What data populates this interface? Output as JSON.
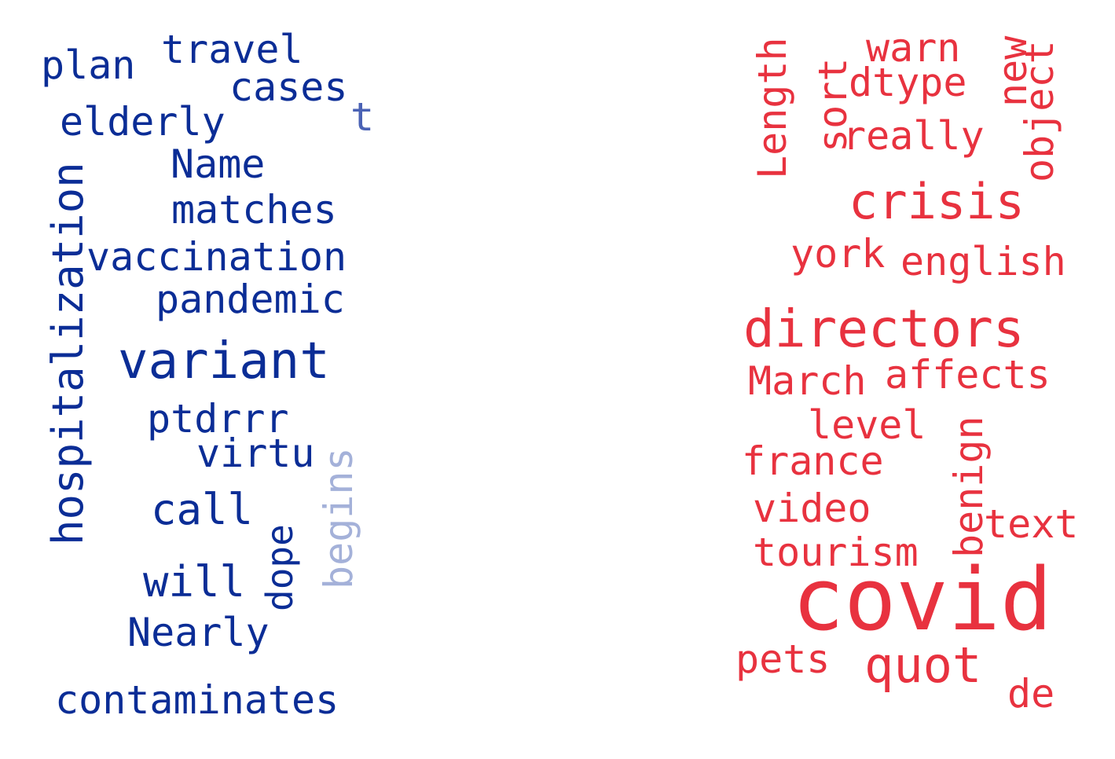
{
  "colors": {
    "left_primary": "#0b2d96",
    "left_medium": "#4a62b5",
    "left_light": "#a4b1d9",
    "right_primary": "#e8323f"
  },
  "left_cloud": {
    "words": [
      {
        "text": "plan",
        "tone": "primary"
      },
      {
        "text": "travel",
        "tone": "primary"
      },
      {
        "text": "cases",
        "tone": "primary"
      },
      {
        "text": "t",
        "tone": "medium"
      },
      {
        "text": "elderly",
        "tone": "primary"
      },
      {
        "text": "Name",
        "tone": "primary"
      },
      {
        "text": "matches",
        "tone": "primary"
      },
      {
        "text": "hospitalization",
        "tone": "primary"
      },
      {
        "text": "vaccination",
        "tone": "primary"
      },
      {
        "text": "pandemic",
        "tone": "primary"
      },
      {
        "text": "variant",
        "tone": "primary"
      },
      {
        "text": "ptdrrr",
        "tone": "primary"
      },
      {
        "text": "virtu",
        "tone": "primary"
      },
      {
        "text": "begins",
        "tone": "light"
      },
      {
        "text": "call",
        "tone": "primary"
      },
      {
        "text": "dope",
        "tone": "primary"
      },
      {
        "text": "will",
        "tone": "primary"
      },
      {
        "text": "Nearly",
        "tone": "primary"
      },
      {
        "text": "contaminates",
        "tone": "primary"
      }
    ]
  },
  "right_cloud": {
    "words": [
      {
        "text": "Length"
      },
      {
        "text": "warn"
      },
      {
        "text": "sort"
      },
      {
        "text": "dtype"
      },
      {
        "text": "new"
      },
      {
        "text": "object"
      },
      {
        "text": "really"
      },
      {
        "text": "crisis"
      },
      {
        "text": "york"
      },
      {
        "text": "english"
      },
      {
        "text": "directors"
      },
      {
        "text": "March"
      },
      {
        "text": "affects"
      },
      {
        "text": "level"
      },
      {
        "text": "benign"
      },
      {
        "text": "france"
      },
      {
        "text": "video"
      },
      {
        "text": "text"
      },
      {
        "text": "tourism"
      },
      {
        "text": "covid"
      },
      {
        "text": "pets"
      },
      {
        "text": "quot"
      },
      {
        "text": "de"
      }
    ]
  }
}
